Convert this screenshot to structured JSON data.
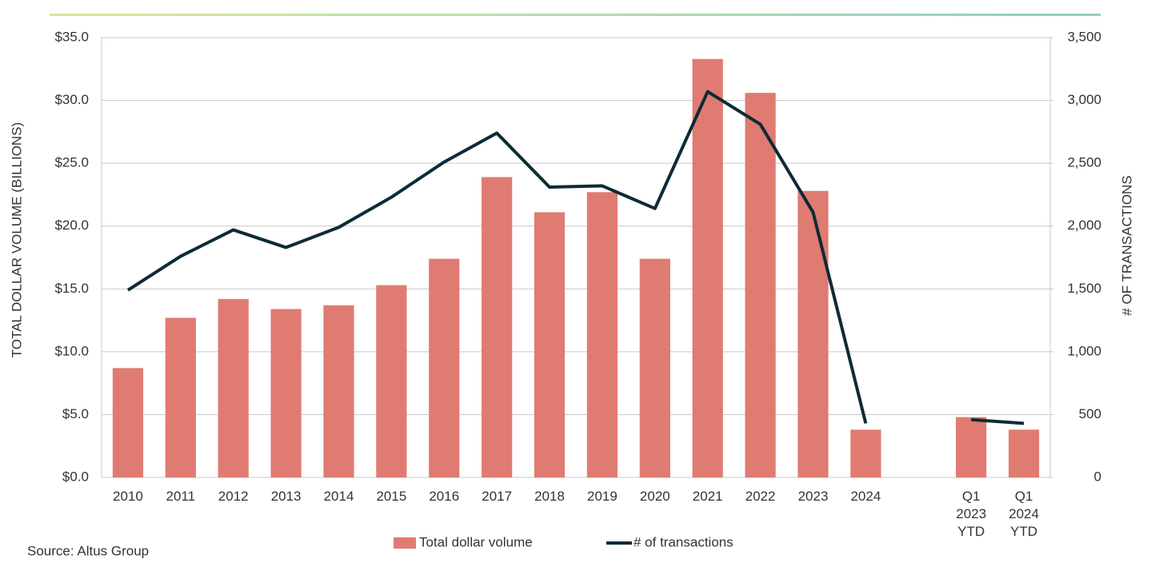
{
  "chart_data": {
    "type": "bar",
    "categories": [
      "2010",
      "2011",
      "2012",
      "2013",
      "2014",
      "2015",
      "2016",
      "2017",
      "2018",
      "2019",
      "2020",
      "2021",
      "2022",
      "2023",
      "2024",
      null,
      "Q1 2023 YTD",
      "Q1 2024 YTD"
    ],
    "series": [
      {
        "name": "Total dollar volume",
        "type": "bar",
        "color": "#e07b72",
        "axis": "y",
        "values": [
          8.7,
          12.7,
          14.2,
          13.4,
          13.7,
          15.3,
          17.4,
          23.9,
          21.1,
          22.7,
          17.4,
          33.3,
          30.6,
          22.8,
          3.8,
          null,
          4.8,
          3.8
        ]
      },
      {
        "name": "# of transactions",
        "type": "line",
        "color": "#0d2b36",
        "axis": "y2",
        "values": [
          1490,
          1760,
          1970,
          1830,
          1990,
          2230,
          2510,
          2740,
          2310,
          2320,
          2140,
          3070,
          2810,
          2110,
          430,
          null,
          460,
          430
        ]
      }
    ],
    "y_label": "TOTAL DOLLAR VOLUME (BILLIONS)",
    "y2_label": "# OF TRANSACTIONS",
    "ylim": [
      0,
      35
    ],
    "yticks": [
      {
        "value": 0,
        "label": "$0.0"
      },
      {
        "value": 5,
        "label": "$5.0"
      },
      {
        "value": 10,
        "label": "$10.0"
      },
      {
        "value": 15,
        "label": "$15.0"
      },
      {
        "value": 20,
        "label": "$20.0"
      },
      {
        "value": 25,
        "label": "$25.0"
      },
      {
        "value": 30,
        "label": "$30.0"
      },
      {
        "value": 35,
        "label": "$35.0"
      }
    ],
    "y2lim": [
      0,
      3500
    ],
    "y2ticks": [
      0,
      500,
      {
        "value": 1000,
        "label": "1,000"
      },
      {
        "value": 1500,
        "label": "1,500"
      },
      {
        "value": 2000,
        "label": "2,000"
      },
      {
        "value": 2500,
        "label": "2,500"
      },
      {
        "value": 3000,
        "label": "3,000"
      },
      {
        "value": 3500,
        "label": "3,500"
      }
    ],
    "grid": true,
    "legend": "bottom",
    "source": "Source:  Altus Group"
  }
}
